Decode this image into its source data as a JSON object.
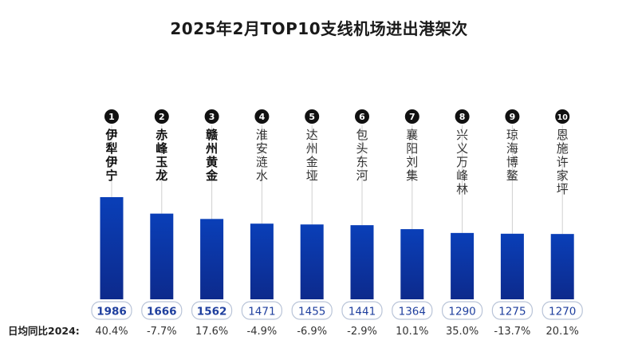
{
  "chart_data": {
    "type": "bar",
    "title": "2025年2月TOP10支线机场进出港架次",
    "categories": [
      "伊犁伊宁",
      "赤峰玉龙",
      "赣州黄金",
      "淮安涟水",
      "达州金垭",
      "包头东河",
      "襄阳刘集",
      "兴义万峰林",
      "琼海博鳌",
      "恩施许家坪"
    ],
    "ranks": [
      "1",
      "2",
      "3",
      "4",
      "5",
      "6",
      "7",
      "8",
      "9",
      "10"
    ],
    "values": [
      1986,
      1666,
      1562,
      1471,
      1455,
      1441,
      1364,
      1290,
      1275,
      1270
    ],
    "yoy_label": "日均同比2024:",
    "yoy": [
      "40.4%",
      "-7.7%",
      "17.6%",
      "-4.9%",
      "-6.9%",
      "-2.9%",
      "10.1%",
      "35.0%",
      "-13.7%",
      "20.1%"
    ],
    "bold_categories": 3,
    "colors": {
      "bar_top": "#0a3fb8",
      "bar_bottom": "#0d2a8c",
      "label_text": "#1f3f9e",
      "label_border": "#b9c4d8",
      "leader": "#d0d0d0"
    }
  }
}
